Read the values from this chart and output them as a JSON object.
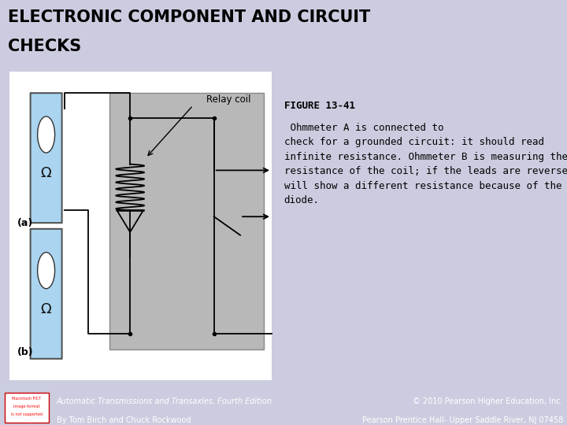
{
  "title_line1": "ELECTRONIC COMPONENT AND CIRCUIT",
  "title_line2": "CHECKS",
  "title_fontsize": 15,
  "title_color": "#000000",
  "bg_color": "#cccce0",
  "bg_color_footer": "#222222",
  "figure_caption_bold": "FIGURE 13-41",
  "figure_caption_rest": " Ohmmeter A is connected to\ncheck for a grounded circuit: it should read\ninfinite resistance. Ohmmeter B is measuring the\nresistance of the coil; if the leads are reversed, it\nwill show a different resistance because of the\ndiode.",
  "caption_fontsize": 9.0,
  "footer_left_line1": "Automatic Transmissions and Transaxles, Fourth Edition",
  "footer_left_line2": "By Tom Birch and Chuck Rockwood",
  "footer_right_line1": "© 2010 Pearson Higher Education, Inc.",
  "footer_right_line2": "Pearson Prentice Hall- Upper Saddle River, NJ 07458",
  "footer_fontsize": 7.0,
  "ohmmeter_fill": "#aad4f0",
  "ohmmeter_edge": "#555555",
  "relay_fill": "#b8b8b8",
  "relay_edge": "#888888",
  "wire_color": "#000000",
  "diagram_bg": "#ffffff",
  "label_a": "(a)",
  "label_b": "(b)",
  "relay_label": "Relay coil"
}
